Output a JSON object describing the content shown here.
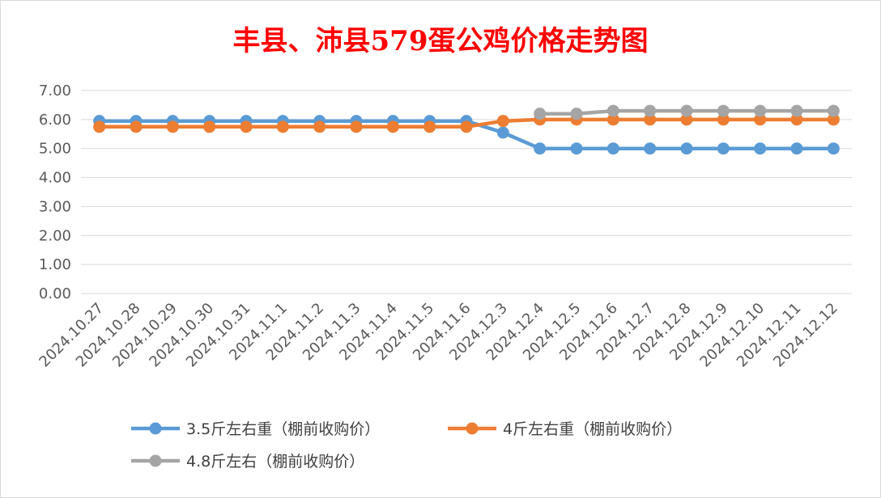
{
  "colors": {
    "title": "#FF0000",
    "grid": "#D9D9D9",
    "frame": "#D9D9D9",
    "series_1": "#5B9BD5",
    "series_2": "#ED7D31",
    "series_3": "#A5A5A5"
  },
  "chart_data": {
    "type": "line",
    "title": "丰县、沛县579蛋公鸡价格走势图",
    "xlabel": "",
    "ylabel": "",
    "ylim": [
      0,
      7
    ],
    "y_ticks": [
      "7.00",
      "6.00",
      "5.00",
      "4.00",
      "3.00",
      "2.00",
      "1.00",
      "0.00"
    ],
    "grid": true,
    "legend_position": "bottom",
    "categories": [
      "2024.10.27",
      "2024.10.28",
      "2024.10.29",
      "2024.10.30",
      "2024.10.31",
      "2024.11.1",
      "2024.11.2",
      "2024.11.3",
      "2024.11.4",
      "2024.11.5",
      "2024.11.6",
      "2024.12.3",
      "2024.12.4",
      "2024.12.5",
      "2024.12.6",
      "2024.12.7",
      "2024.12.8",
      "2024.12.9",
      "2024.12.10",
      "2024.12.11",
      "2024.12.12"
    ],
    "series": [
      {
        "name": "3.5斤左右重（棚前收购价）",
        "color": "#5B9BD5",
        "values": [
          5.95,
          5.95,
          5.95,
          5.95,
          5.95,
          5.95,
          5.95,
          5.95,
          5.95,
          5.95,
          5.95,
          5.55,
          5.0,
          5.0,
          5.0,
          5.0,
          5.0,
          5.0,
          5.0,
          5.0,
          5.0
        ]
      },
      {
        "name": "4斤左右重（棚前收购价）",
        "color": "#ED7D31",
        "values": [
          5.75,
          5.75,
          5.75,
          5.75,
          5.75,
          5.75,
          5.75,
          5.75,
          5.75,
          5.75,
          5.75,
          5.95,
          6.0,
          6.0,
          6.0,
          6.0,
          6.0,
          6.0,
          6.0,
          6.0,
          6.0
        ]
      },
      {
        "name": "4.8斤左右（棚前收购价）",
        "color": "#A5A5A5",
        "values": [
          null,
          null,
          null,
          null,
          null,
          null,
          null,
          null,
          null,
          null,
          null,
          null,
          6.2,
          6.2,
          6.3,
          6.3,
          6.3,
          6.3,
          6.3,
          6.3,
          6.3
        ]
      }
    ]
  }
}
